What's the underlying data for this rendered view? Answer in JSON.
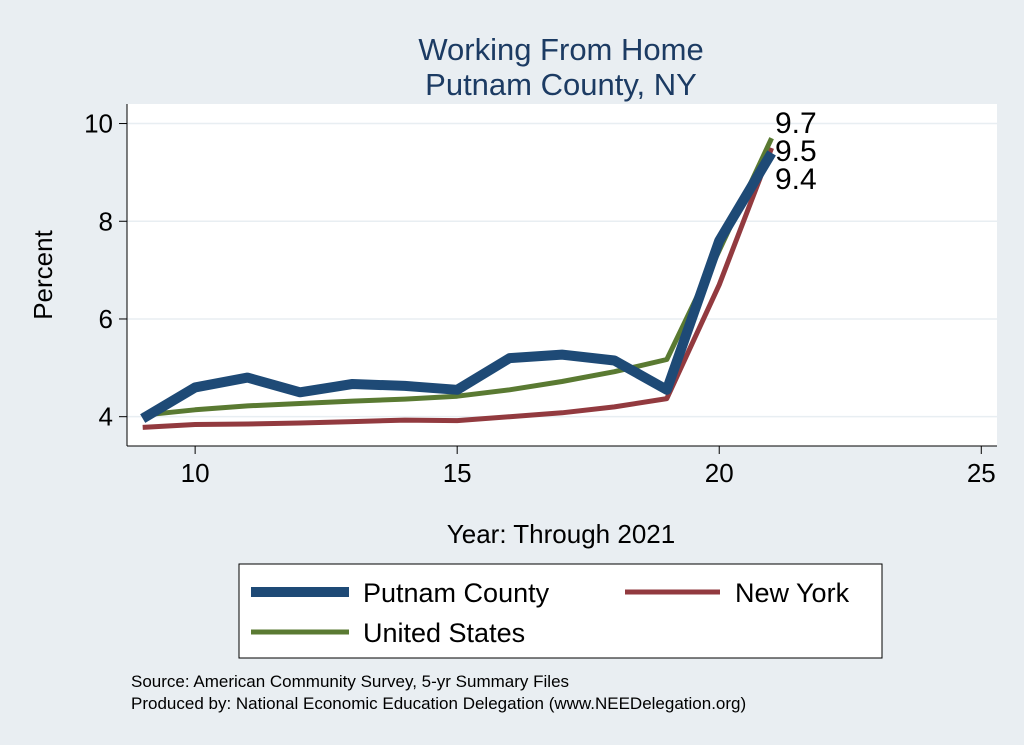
{
  "chart_data": {
    "type": "line",
    "title": [
      "Working From Home",
      "Putnam County, NY"
    ],
    "xlabel": "Year: Through 2021",
    "ylabel": "Percent",
    "xlim": [
      8.7,
      25.3
    ],
    "ylim": [
      3.4,
      10.4
    ],
    "xticks": [
      10,
      15,
      20,
      25
    ],
    "yticks": [
      4,
      6,
      8,
      10
    ],
    "grid": true,
    "legend_position": "bottom",
    "series": [
      {
        "name": "Putnam County",
        "color": "#1e4a76",
        "x": [
          9,
          10,
          11,
          12,
          13,
          14,
          15,
          16,
          17,
          18,
          19,
          20,
          21
        ],
        "y": [
          3.96,
          4.6,
          4.8,
          4.5,
          4.67,
          4.63,
          4.55,
          5.2,
          5.27,
          5.15,
          4.55,
          7.6,
          9.4
        ]
      },
      {
        "name": "New York",
        "color": "#923a3f",
        "x": [
          9,
          10,
          11,
          12,
          13,
          14,
          15,
          16,
          17,
          18,
          19,
          20,
          21
        ],
        "y": [
          3.78,
          3.84,
          3.85,
          3.87,
          3.9,
          3.93,
          3.92,
          4.0,
          4.08,
          4.2,
          4.37,
          6.7,
          9.5
        ]
      },
      {
        "name": "United States",
        "color": "#5a7a32",
        "x": [
          9,
          10,
          11,
          12,
          13,
          14,
          15,
          16,
          17,
          18,
          19,
          20,
          21
        ],
        "y": [
          4.03,
          4.14,
          4.22,
          4.27,
          4.32,
          4.36,
          4.42,
          4.55,
          4.72,
          4.92,
          5.17,
          7.4,
          9.7
        ]
      }
    ],
    "end_labels": [
      "9.7",
      "9.5",
      "9.4"
    ],
    "source_lines": [
      "Source: American Community Survey, 5-yr Summary Files",
      "Produced by: National Economic Education Delegation (www.NEEDelegation.org)"
    ]
  }
}
